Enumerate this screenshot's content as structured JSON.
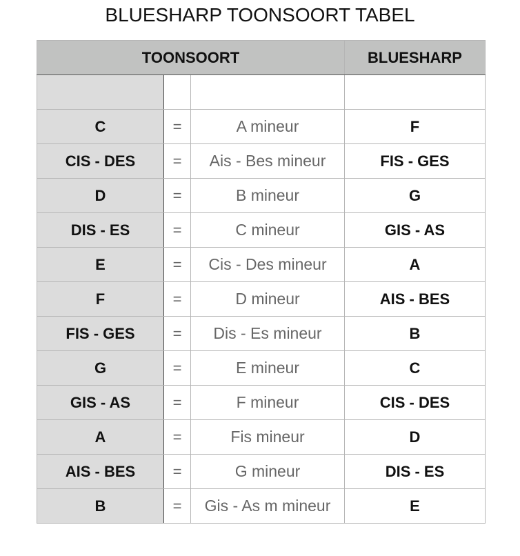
{
  "title": "BLUESHARP TOONSOORT TABEL",
  "headers": {
    "toonsoort": "TOONSOORT",
    "bluesharp": "BLUESHARP"
  },
  "rows": [
    {
      "key": "C",
      "eq": "=",
      "minor": "A mineur",
      "harp": "F"
    },
    {
      "key": "CIS - DES",
      "eq": "=",
      "minor": "Ais - Bes mineur",
      "harp": "FIS - GES"
    },
    {
      "key": "D",
      "eq": "=",
      "minor": "B mineur",
      "harp": "G"
    },
    {
      "key": "DIS - ES",
      "eq": "=",
      "minor": "C mineur",
      "harp": "GIS - AS"
    },
    {
      "key": "E",
      "eq": "=",
      "minor": "Cis - Des mineur",
      "harp": "A"
    },
    {
      "key": "F",
      "eq": "=",
      "minor": "D mineur",
      "harp": "AIS - BES"
    },
    {
      "key": "FIS - GES",
      "eq": "=",
      "minor": "Dis - Es mineur",
      "harp": "B"
    },
    {
      "key": "G",
      "eq": "=",
      "minor": "E mineur",
      "harp": "C"
    },
    {
      "key": "GIS - AS",
      "eq": "=",
      "minor": "F mineur",
      "harp": "CIS - DES"
    },
    {
      "key": "A",
      "eq": "=",
      "minor": "Fis mineur",
      "harp": "D"
    },
    {
      "key": "AIS - BES",
      "eq": "=",
      "minor": "G mineur",
      "harp": "DIS - ES"
    },
    {
      "key": "B",
      "eq": "=",
      "minor": "Gis - As m mineur",
      "harp": "E"
    }
  ]
}
